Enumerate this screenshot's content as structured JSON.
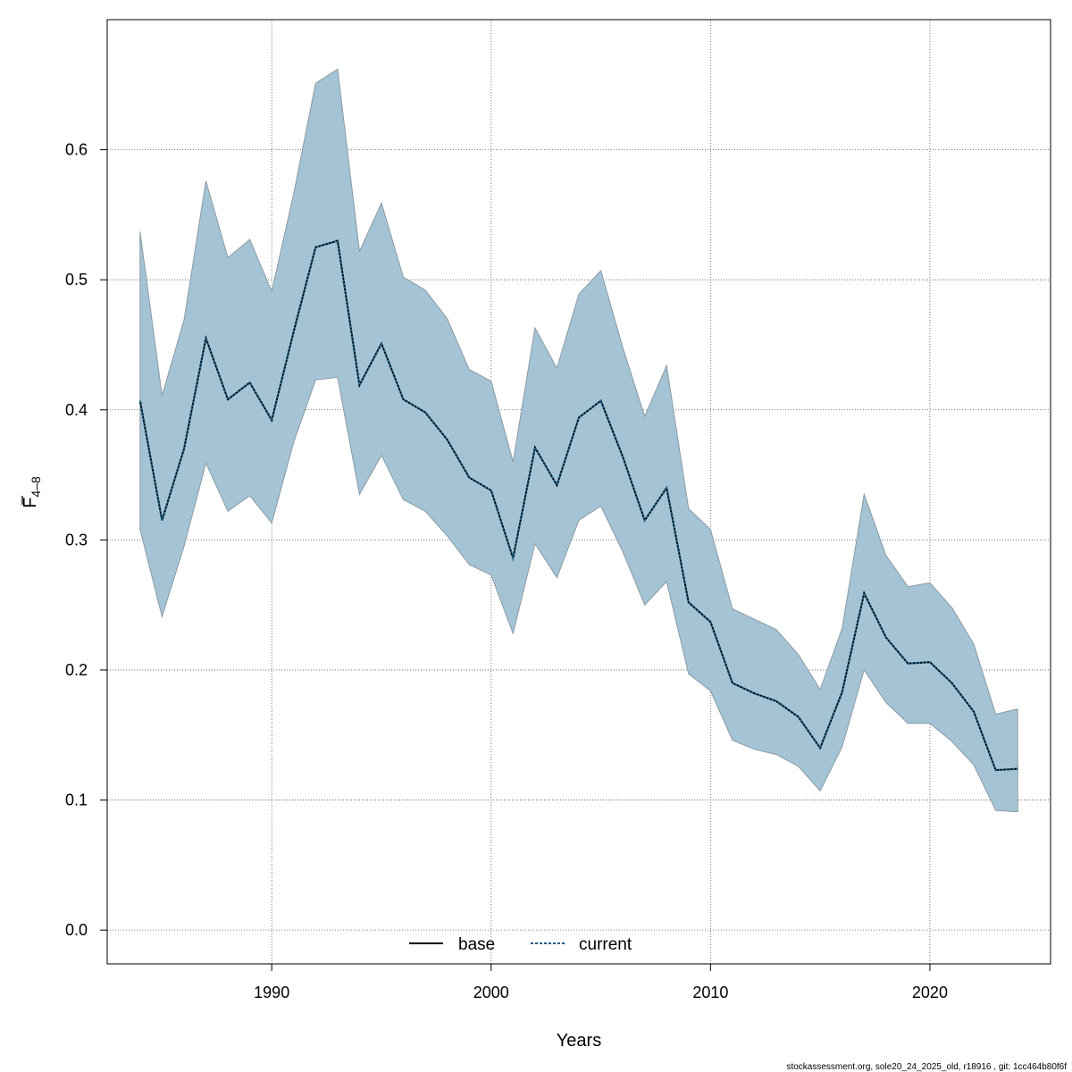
{
  "chart_data": {
    "type": "area",
    "x": [
      1984,
      1985,
      1986,
      1987,
      1988,
      1989,
      1990,
      1991,
      1992,
      1993,
      1994,
      1995,
      1996,
      1997,
      1998,
      1999,
      2000,
      2001,
      2002,
      2003,
      2004,
      2005,
      2006,
      2007,
      2008,
      2009,
      2010,
      2011,
      2012,
      2013,
      2014,
      2015,
      2016,
      2017,
      2018,
      2019,
      2020,
      2021,
      2022,
      2023,
      2024
    ],
    "series": [
      {
        "name": "current",
        "values": [
          0.407,
          0.315,
          0.37,
          0.455,
          0.408,
          0.421,
          0.392,
          0.46,
          0.525,
          0.53,
          0.419,
          0.451,
          0.408,
          0.398,
          0.377,
          0.348,
          0.338,
          0.286,
          0.371,
          0.342,
          0.394,
          0.407,
          0.364,
          0.315,
          0.34,
          0.252,
          0.237,
          0.19,
          0.182,
          0.176,
          0.164,
          0.14,
          0.183,
          0.259,
          0.225,
          0.205,
          0.206,
          0.19,
          0.168,
          0.123,
          0.124
        ],
        "lower": [
          0.308,
          0.241,
          0.295,
          0.359,
          0.322,
          0.334,
          0.313,
          0.375,
          0.423,
          0.425,
          0.335,
          0.365,
          0.331,
          0.322,
          0.303,
          0.281,
          0.273,
          0.228,
          0.297,
          0.271,
          0.315,
          0.326,
          0.291,
          0.25,
          0.268,
          0.197,
          0.184,
          0.146,
          0.139,
          0.135,
          0.126,
          0.107,
          0.141,
          0.2,
          0.175,
          0.159,
          0.159,
          0.145,
          0.127,
          0.092,
          0.091
        ],
        "upper": [
          0.537,
          0.411,
          0.469,
          0.576,
          0.517,
          0.531,
          0.491,
          0.566,
          0.651,
          0.662,
          0.522,
          0.559,
          0.502,
          0.492,
          0.47,
          0.431,
          0.422,
          0.36,
          0.463,
          0.432,
          0.489,
          0.507,
          0.448,
          0.395,
          0.434,
          0.324,
          0.308,
          0.247,
          0.239,
          0.231,
          0.212,
          0.185,
          0.232,
          0.335,
          0.288,
          0.264,
          0.267,
          0.248,
          0.22,
          0.166,
          0.17
        ]
      }
    ],
    "xlabel": "Years",
    "ylabel_main": "F",
    "ylabel_sub": "4–8",
    "xlim": [
      1982.5,
      2025.5
    ],
    "ylim": [
      -0.026,
      0.7
    ],
    "x_ticks": [
      1990,
      2000,
      2010,
      2020
    ],
    "y_ticks": [
      0.0,
      0.1,
      0.2,
      0.3,
      0.4,
      0.5,
      0.6
    ],
    "y_tick_labels": [
      "0.0",
      "0.1",
      "0.2",
      "0.3",
      "0.4",
      "0.5",
      "0.6"
    ],
    "grid": true,
    "legend": {
      "position": "bottom-center",
      "entries": [
        {
          "label": "base",
          "style": "solid",
          "color": "#000000"
        },
        {
          "label": "current",
          "style": "dotted",
          "color": "#0b5b8c"
        }
      ]
    },
    "colors": {
      "band_fill": "#a4c4d5",
      "band_edge": "#8a9aa3",
      "current_line": "#0b3d5c"
    }
  },
  "footer": "stockassessment.org, sole20_24_2025_old, r18916 , git: 1cc464b80f6f"
}
